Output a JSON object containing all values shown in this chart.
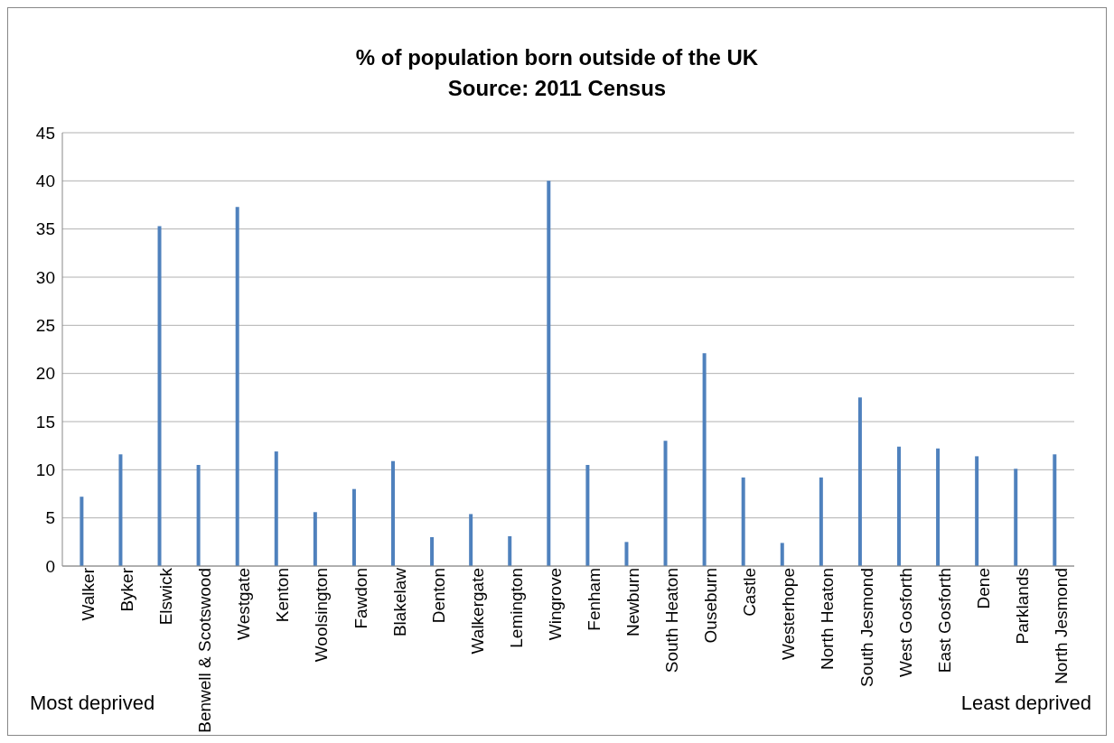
{
  "chart_data": {
    "type": "bar",
    "title": "% of population born outside of the UK",
    "subtitle": "Source: 2011 Census",
    "categories": [
      "Walker",
      "Byker",
      "Elswick",
      "Benwell & Scotswood",
      "Westgate",
      "Kenton",
      "Woolsington",
      "Fawdon",
      "Blakelaw",
      "Denton",
      "Walkergate",
      "Lemington",
      "Wingrove",
      "Fenham",
      "Newburn",
      "South Heaton",
      "Ouseburn",
      "Castle",
      "Westerhope",
      "North Heaton",
      "South Jesmond",
      "West Gosforth",
      "East Gosforth",
      "Dene",
      "Parklands",
      "North Jesmond"
    ],
    "values": [
      7.2,
      11.6,
      35.3,
      10.5,
      37.3,
      11.9,
      5.6,
      8.0,
      10.9,
      3.0,
      5.4,
      3.1,
      40.0,
      10.5,
      2.5,
      13.0,
      22.1,
      9.2,
      2.4,
      9.2,
      17.5,
      12.4,
      12.2,
      11.4,
      10.1,
      11.6
    ],
    "color": "#4f81bd",
    "ylim": [
      0,
      45
    ],
    "yticks": [
      0,
      5,
      10,
      15,
      20,
      25,
      30,
      35,
      40,
      45
    ],
    "grid": "y",
    "annotations": [
      "Most deprived",
      "Least deprived"
    ]
  }
}
